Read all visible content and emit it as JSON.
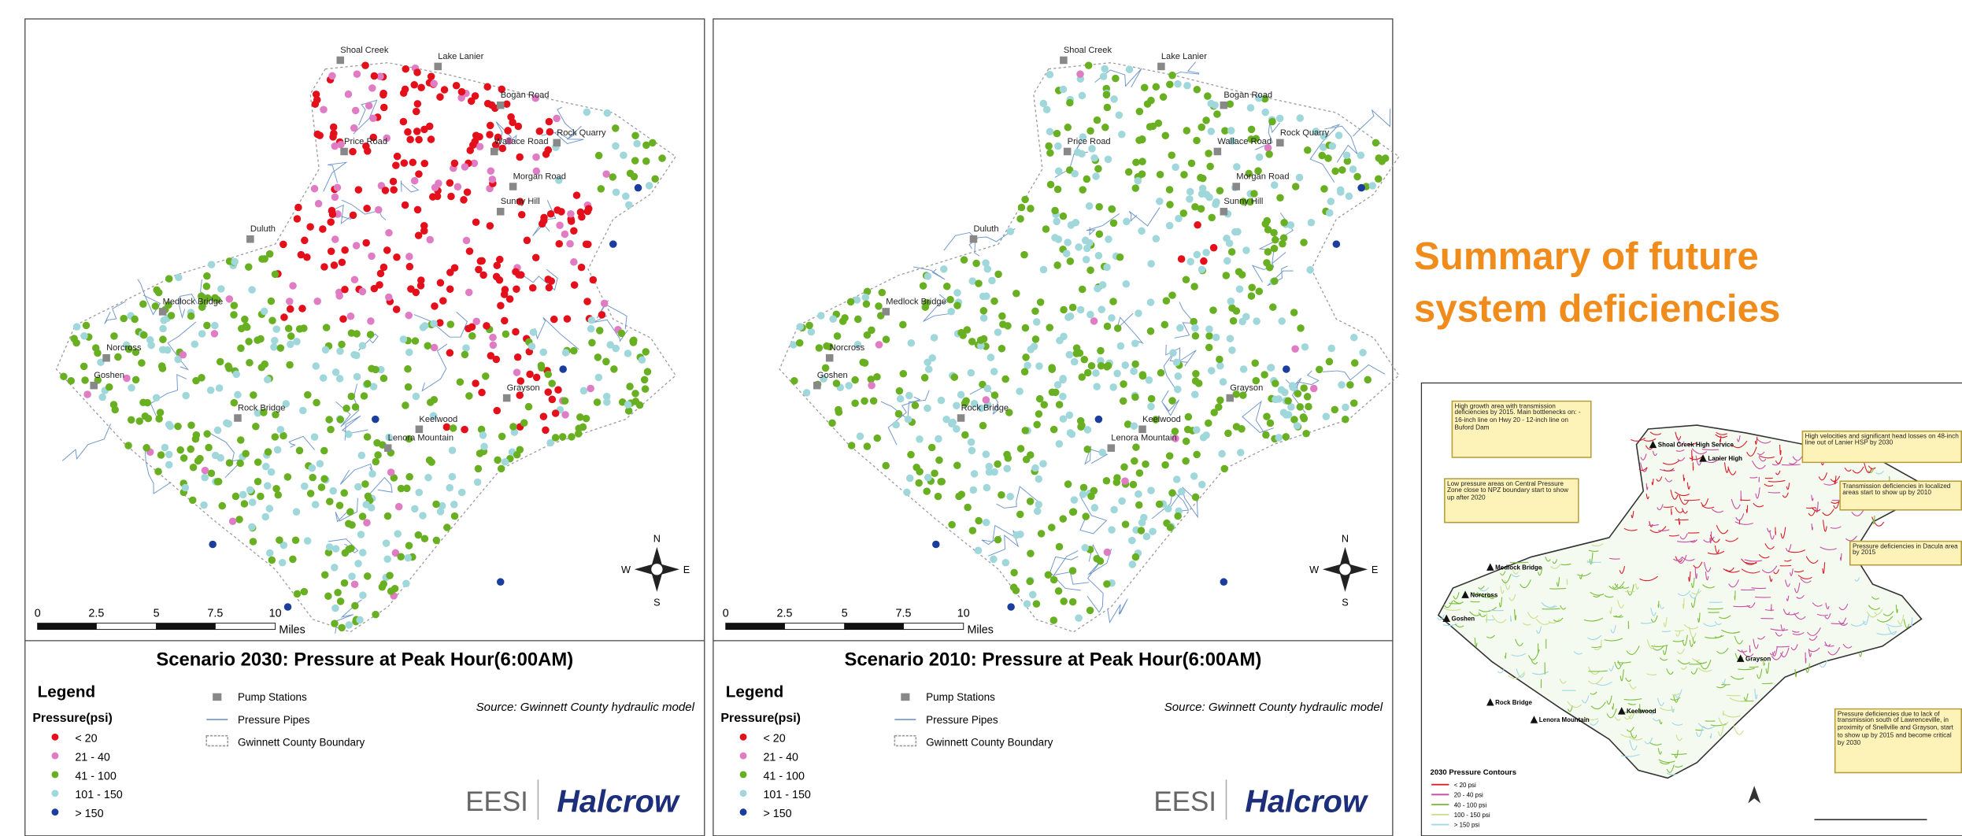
{
  "slide": {
    "subtitle": "Summary of future system deficiencies"
  },
  "pressure_colors": [
    "#e3101c",
    "#e07cc4",
    "#68b022",
    "#9fd7db",
    "#1b3d9e"
  ],
  "panels": [
    {
      "title": "Scenario 2030: Pressure at Peak Hour(6:00AM)",
      "places": [
        "Shoal Creek",
        "Lake Lanier",
        "Bogan Road",
        "Rock Quarry",
        "Wallace Road",
        "Morgan Road",
        "Sunny Hill",
        "Price Road",
        "Duluth",
        "Medlock Bridge",
        "Norcross",
        "Goshen",
        "Grayson",
        "Rock Bridge",
        "Keelwood",
        "Lenora Mountain"
      ],
      "scale_labels": [
        "0",
        "2.5",
        "5",
        "7.5",
        "10"
      ],
      "scale_unit": "Miles",
      "compass": [
        "N",
        "W",
        "E",
        "S"
      ],
      "legend": {
        "heading": "Legend",
        "subheading": "Pressure(psi)",
        "classes": [
          "< 20",
          "21 - 40",
          "41 - 100",
          "101 - 150",
          "> 150"
        ],
        "features": [
          "Pump Stations",
          "Pressure Pipes",
          "Gwinnett County Boundary"
        ]
      },
      "source": "Source: Gwinnett County hydraulic model",
      "logos": [
        "EESI",
        "Halcrow"
      ]
    },
    {
      "title": "Scenario 2010: Pressure at Peak Hour(6:00AM)",
      "places": [
        "Shoal Creek",
        "Lake Lanier",
        "Bogan Road",
        "Rock Quarry",
        "Wallace Road",
        "Morgan Road",
        "Sunny Hill",
        "Price Road",
        "Duluth",
        "Medlock Bridge",
        "Norcross",
        "Goshen",
        "Grayson",
        "Rock Bridge",
        "Keelwood",
        "Lenora Mountain"
      ],
      "scale_labels": [
        "0",
        "2.5",
        "5",
        "7.5",
        "10"
      ],
      "scale_unit": "Miles",
      "compass": [
        "N",
        "W",
        "E",
        "S"
      ],
      "legend": {
        "heading": "Legend",
        "subheading": "Pressure(psi)",
        "classes": [
          "< 20",
          "21 - 40",
          "41 - 100",
          "101 - 150",
          "> 150"
        ],
        "features": [
          "Pump Stations",
          "Pressure Pipes",
          "Gwinnett County Boundary"
        ]
      },
      "source": "Source: Gwinnett County hydraulic model",
      "logos": [
        "EESI",
        "Halcrow"
      ]
    }
  ],
  "inset": {
    "notes": [
      "High growth area with transmission deficiencies by 2015. Main bottlenecks on: - 16-inch line on Hwy 20 - 12-inch line on Buford Dam",
      "High velocities and significant head losses on 48-inch line out of Lanier HSP by 2030",
      "Low pressure areas on Central Pressure Zone close to NPZ boundary start to show up after 2020",
      "Transmission deficiencies in localized areas start to show up by 2010",
      "Pressure deficiencies in Dacula area by 2015",
      "Pressure deficiencies due to lack of transmission south of Lawrenceville, in proximity of Snellville and Grayson, start to show up by 2015 and become critical by 2030"
    ],
    "places": [
      "Shoal Creek High Service",
      "Lanier High",
      "Medlock Bridge",
      "Norcross",
      "Goshen",
      "Rock Bridge",
      "Lenora Mountain",
      "Keelwood",
      "Grayson"
    ],
    "legend_title": "2030 Pressure Contours",
    "legend_items": [
      "< 20 psi",
      "20 - 40 psi",
      "40 - 100 psi",
      "100 - 150 psi",
      "> 150 psi"
    ],
    "legend_colors": [
      "#d81f2a",
      "#c84fa6",
      "#7cbf3a",
      "#c8e08a",
      "#9fd7e8"
    ]
  }
}
